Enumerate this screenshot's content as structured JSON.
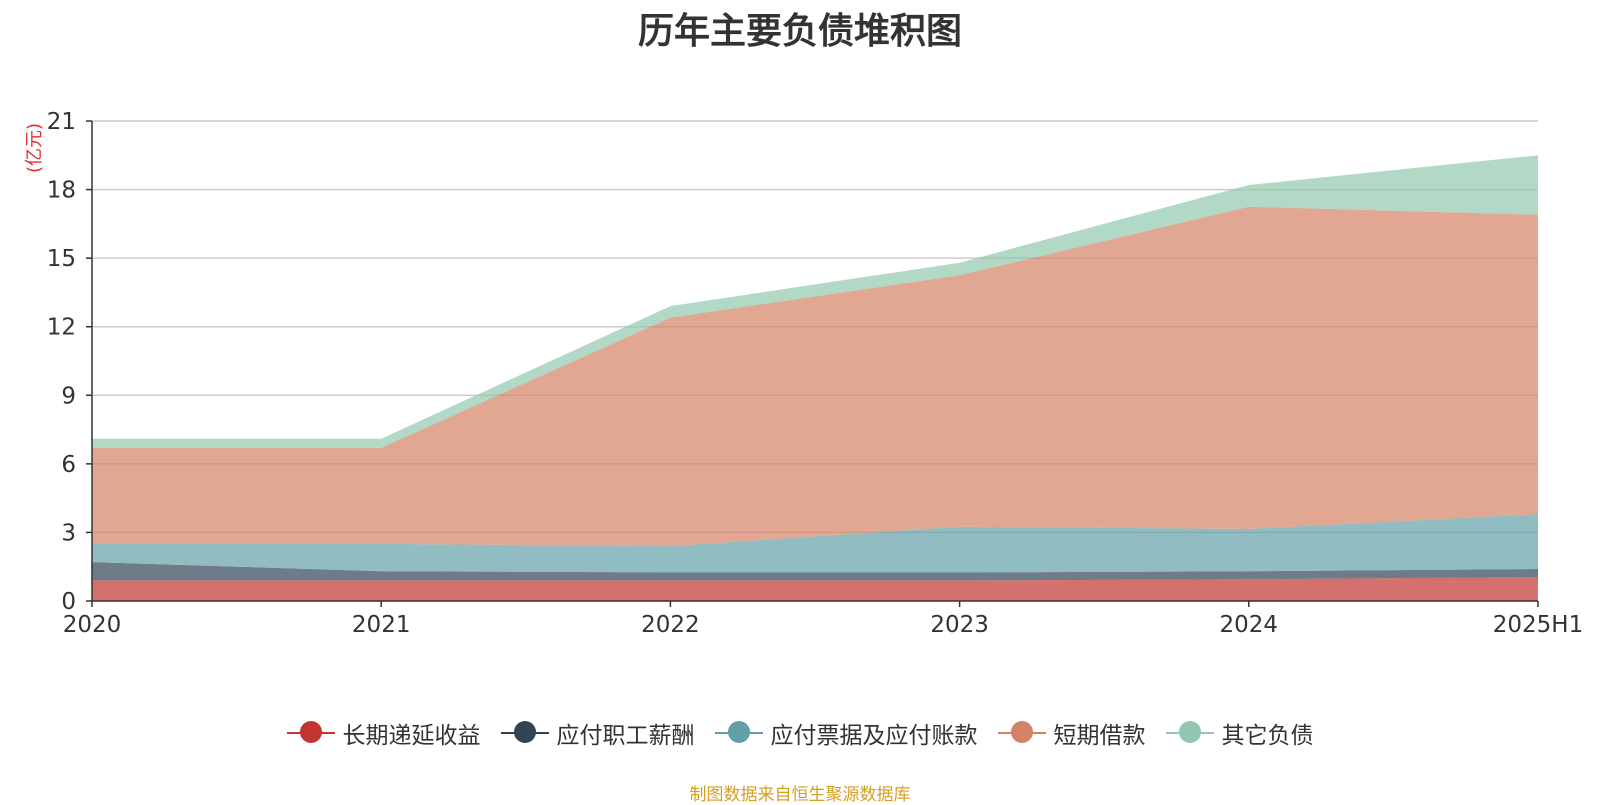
{
  "chart_data": {
    "type": "area",
    "stacked": true,
    "title": "历年主要负债堆积图",
    "unit_label": "(亿元)",
    "categories": [
      "2020",
      "2021",
      "2022",
      "2023",
      "2024",
      "2025H1"
    ],
    "ylim": [
      0,
      21
    ],
    "yticks": [
      0,
      3,
      6,
      9,
      12,
      15,
      18,
      21
    ],
    "grid": true,
    "legend_position": "bottom",
    "series": [
      {
        "name": "长期递延收益",
        "color": "#c23531",
        "values": [
          0.9,
          0.9,
          0.9,
          0.9,
          0.95,
          1.05
        ]
      },
      {
        "name": "应付职工薪酬",
        "color": "#2f4554",
        "values": [
          0.8,
          0.4,
          0.35,
          0.35,
          0.35,
          0.35
        ]
      },
      {
        "name": "应付票据及应付账款",
        "color": "#61a0a8",
        "values": [
          0.8,
          1.2,
          1.15,
          2.0,
          1.85,
          2.4
        ]
      },
      {
        "name": "短期借款",
        "color": "#d48265",
        "values": [
          4.2,
          4.2,
          10.0,
          11.0,
          14.1,
          13.1
        ]
      },
      {
        "name": "其它负债",
        "color": "#91c7ae",
        "values": [
          0.4,
          0.4,
          0.5,
          0.55,
          0.95,
          2.6
        ]
      }
    ],
    "source_note": "制图数据来自恒生聚源数据库"
  }
}
